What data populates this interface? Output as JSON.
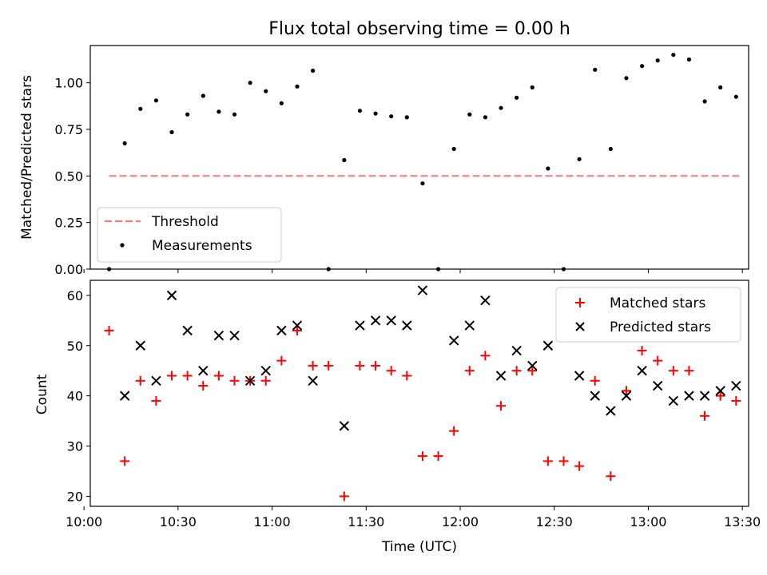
{
  "chart_data": [
    {
      "type": "scatter",
      "title": "Flux total observing time = 0.00 h",
      "xlabel": "",
      "ylabel": "Matched/Predicted stars",
      "ylim": [
        0,
        1.2
      ],
      "yticks": [
        "0.00",
        "0.25",
        "0.50",
        "0.75",
        "1.00"
      ],
      "xlim": [
        "10:02",
        "13:32"
      ],
      "threshold": {
        "name": "Threshold",
        "value": 0.5,
        "x_range": [
          "10:08",
          "13:29"
        ],
        "color": "#f08080"
      },
      "series": [
        {
          "name": "Measurements",
          "color": "#000000",
          "x": [
            "10:08",
            "10:13",
            "10:18",
            "10:23",
            "10:28",
            "10:33",
            "10:38",
            "10:43",
            "10:48",
            "10:53",
            "10:58",
            "11:03",
            "11:08",
            "11:13",
            "11:18",
            "11:23",
            "11:28",
            "11:33",
            "11:38",
            "11:43",
            "11:48",
            "11:53",
            "11:58",
            "12:03",
            "12:08",
            "12:13",
            "12:18",
            "12:23",
            "12:28",
            "12:33",
            "12:38",
            "12:43",
            "12:48",
            "12:53",
            "12:58",
            "13:03",
            "13:08",
            "13:13",
            "13:18",
            "13:23",
            "13:28"
          ],
          "y": [
            0.0,
            0.675,
            0.86,
            0.905,
            0.735,
            0.83,
            0.93,
            0.845,
            0.83,
            1.0,
            0.955,
            0.89,
            0.98,
            1.065,
            0.0,
            0.585,
            0.85,
            0.835,
            0.82,
            0.815,
            0.46,
            0.0,
            0.645,
            0.83,
            0.815,
            0.865,
            0.92,
            0.975,
            0.54,
            0.0,
            0.59,
            1.07,
            0.645,
            1.025,
            1.09,
            1.12,
            1.15,
            1.125,
            0.9,
            0.975,
            0.925
          ]
        }
      ],
      "legend_position": "lower-left"
    },
    {
      "type": "scatter",
      "title": "",
      "xlabel": "Time (UTC)",
      "ylabel": "Count",
      "ylim": [
        18,
        63
      ],
      "yticks": [
        "20",
        "30",
        "40",
        "50",
        "60"
      ],
      "xlim": [
        "10:02",
        "13:32"
      ],
      "xticks": [
        "10:00",
        "10:30",
        "11:00",
        "11:30",
        "12:00",
        "12:30",
        "13:00",
        "13:30"
      ],
      "series": [
        {
          "name": "Matched stars",
          "marker": "+",
          "color": "#ff0000",
          "x": [
            "10:08",
            "10:13",
            "10:18",
            "10:23",
            "10:28",
            "10:33",
            "10:38",
            "10:43",
            "10:48",
            "10:53",
            "10:58",
            "11:03",
            "11:08",
            "11:13",
            "11:18",
            "11:23",
            "11:28",
            "11:33",
            "11:38",
            "11:43",
            "11:48",
            "11:53",
            "11:58",
            "12:03",
            "12:08",
            "12:13",
            "12:18",
            "12:23",
            "12:28",
            "12:33",
            "12:38",
            "12:43",
            "12:48",
            "12:53",
            "12:58",
            "13:03",
            "13:08",
            "13:13",
            "13:18",
            "13:23",
            "13:28"
          ],
          "y": [
            53,
            27,
            43,
            39,
            44,
            44,
            42,
            44,
            43,
            43,
            43,
            47,
            53,
            46,
            46,
            20,
            46,
            46,
            45,
            44,
            28,
            28,
            33,
            45,
            48,
            38,
            45,
            45,
            27,
            27,
            26,
            43,
            24,
            41,
            49,
            47,
            45,
            45,
            36,
            40,
            39
          ]
        },
        {
          "name": "Predicted stars",
          "marker": "x",
          "color": "#000000",
          "x": [
            "10:13",
            "10:18",
            "10:23",
            "10:28",
            "10:33",
            "10:38",
            "10:43",
            "10:48",
            "10:53",
            "10:58",
            "11:03",
            "11:08",
            "11:13",
            "11:23",
            "11:28",
            "11:33",
            "11:38",
            "11:43",
            "11:48",
            "11:58",
            "12:03",
            "12:08",
            "12:13",
            "12:18",
            "12:23",
            "12:28",
            "12:38",
            "12:43",
            "12:48",
            "12:53",
            "12:58",
            "13:03",
            "13:08",
            "13:13",
            "13:18",
            "13:23",
            "13:28"
          ],
          "y": [
            40,
            50,
            43,
            60,
            53,
            45,
            52,
            52,
            43,
            45,
            53,
            54,
            43,
            34,
            54,
            55,
            55,
            54,
            61,
            51,
            54,
            59,
            44,
            49,
            46,
            50,
            44,
            40,
            37,
            40,
            45,
            42,
            39,
            40,
            40,
            41,
            42
          ]
        }
      ],
      "legend_position": "top-right"
    }
  ]
}
